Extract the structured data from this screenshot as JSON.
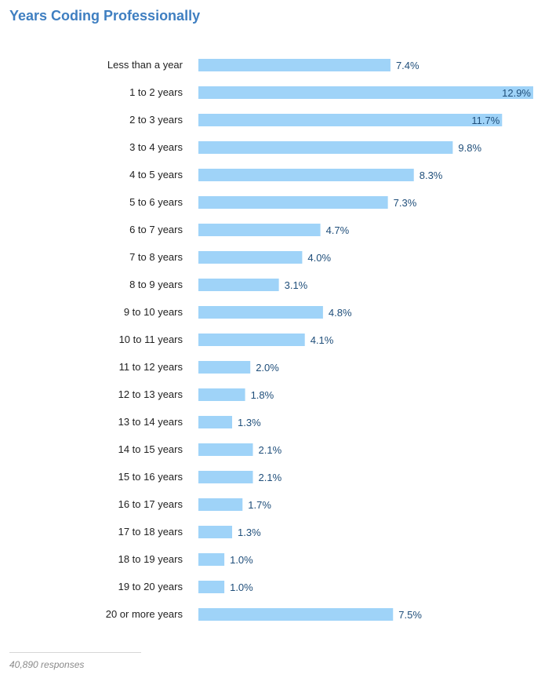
{
  "chart_data": {
    "type": "bar",
    "orientation": "horizontal",
    "title": "Years Coding Professionally",
    "categories": [
      "Less than a year",
      "1 to 2 years",
      "2 to 3 years",
      "3 to 4 years",
      "4 to 5 years",
      "5 to 6 years",
      "6 to 7 years",
      "7 to 8 years",
      "8 to 9 years",
      "9 to 10 years",
      "10 to 11 years",
      "11 to 12 years",
      "12 to 13 years",
      "13 to 14 years",
      "14 to 15 years",
      "15 to 16 years",
      "16 to 17 years",
      "17 to 18 years",
      "18 to 19 years",
      "19 to 20 years",
      "20 or more years"
    ],
    "values": [
      7.4,
      12.9,
      11.7,
      9.8,
      8.3,
      7.3,
      4.7,
      4.0,
      3.1,
      4.8,
      4.1,
      2.0,
      1.8,
      1.3,
      2.1,
      2.1,
      1.7,
      1.3,
      1.0,
      1.0,
      7.5
    ],
    "labels": [
      "7.4%",
      "12.9%",
      "11.7%",
      "9.8%",
      "8.3%",
      "7.3%",
      "4.7%",
      "4.0%",
      "3.1%",
      "4.8%",
      "4.1%",
      "2.0%",
      "1.8%",
      "1.3%",
      "2.1%",
      "2.1%",
      "1.7%",
      "1.3%",
      "1.0%",
      "1.0%",
      "7.5%"
    ],
    "xlim": [
      0,
      12.9
    ],
    "grid": false,
    "legend": "none"
  },
  "footer": {
    "responses": "40,890 responses"
  },
  "colors": {
    "bar": "#9fd3f8",
    "value_text": "#1f4e7a",
    "value_text_inside": "#1f4e7a",
    "title": "#3f7fc1"
  }
}
